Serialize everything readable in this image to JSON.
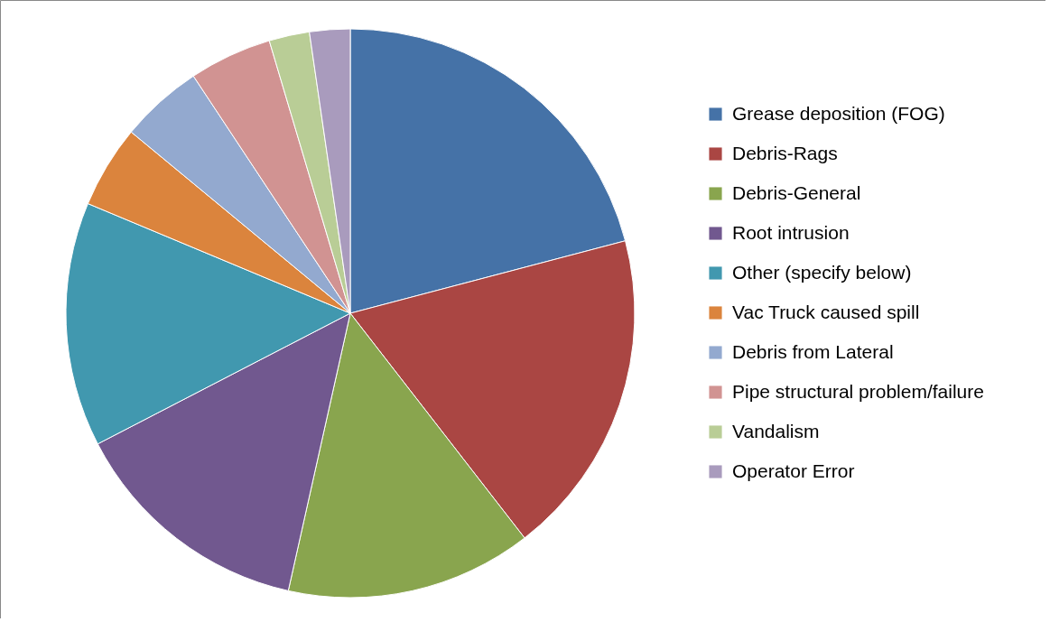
{
  "chart_data": {
    "type": "pie",
    "legend": "right",
    "categories": [
      "Grease deposition (FOG)",
      "Debris-Rags",
      "Debris-General",
      "Root intrusion",
      "Other (specify below)",
      "Vac Truck caused spill",
      "Debris from Lateral",
      "Pipe structural problem/failure",
      "Vandalism",
      "Operator Error"
    ],
    "values": [
      20.9,
      18.6,
      14.0,
      13.9,
      13.9,
      4.7,
      4.7,
      4.7,
      2.3,
      2.3
    ],
    "colors": [
      "#4572a7",
      "#aa4643",
      "#89a54e",
      "#71588f",
      "#4198af",
      "#db843d",
      "#93a9cf",
      "#d19392",
      "#b9cd96",
      "#a99bbd"
    ]
  }
}
